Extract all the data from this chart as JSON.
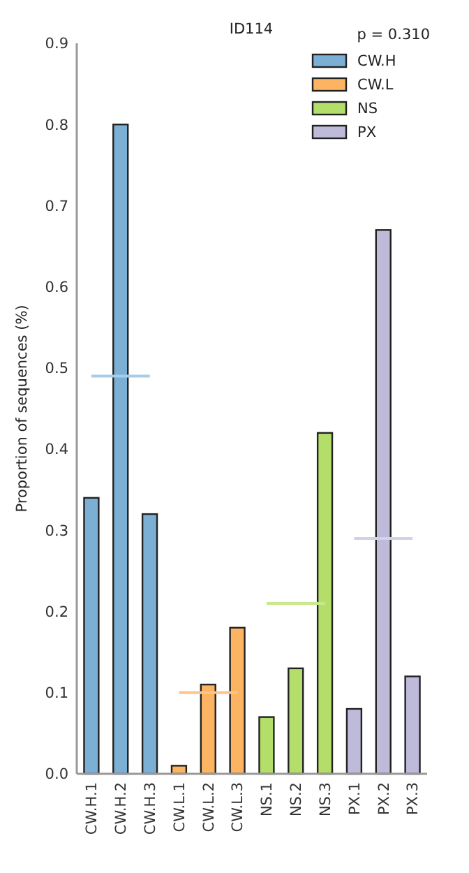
{
  "chart_data": {
    "type": "bar",
    "title": "ID114",
    "ylabel": "Proportion of sequences (%)",
    "annotations": [
      "p = 0.310"
    ],
    "categories": [
      "CW.H.1",
      "CW.H.2",
      "CW.H.3",
      "CW.L.1",
      "CW.L.2",
      "CW.L.3",
      "NS.1",
      "NS.2",
      "NS.3",
      "PX.1",
      "PX.2",
      "PX.3"
    ],
    "series": [
      {
        "name": "CW.H",
        "color": "#7bafd4",
        "values": [
          0.34,
          0.8,
          0.32,
          null,
          null,
          null,
          null,
          null,
          null,
          null,
          null,
          null
        ]
      },
      {
        "name": "CW.L",
        "color": "#fdb462",
        "values": [
          null,
          null,
          null,
          0.01,
          0.11,
          0.18,
          null,
          null,
          null,
          null,
          null,
          null
        ]
      },
      {
        "name": "NS",
        "color": "#b3de69",
        "values": [
          null,
          null,
          null,
          null,
          null,
          null,
          0.07,
          0.13,
          0.42,
          null,
          null,
          null
        ]
      },
      {
        "name": "PX",
        "color": "#bebada",
        "values": [
          null,
          null,
          null,
          null,
          null,
          null,
          null,
          null,
          null,
          0.08,
          0.67,
          0.12
        ]
      },
      {
        "type": "line",
        "color": "#a6cde8",
        "values": [
          0.49,
          0.49,
          0.49,
          null,
          null,
          null,
          null,
          null,
          null,
          null,
          null,
          null
        ]
      },
      {
        "type": "line",
        "color": "#fdc58a",
        "values": [
          null,
          null,
          null,
          0.1,
          0.1,
          0.1,
          null,
          null,
          null,
          null,
          null,
          null
        ]
      },
      {
        "type": "line",
        "color": "#c8e88a",
        "values": [
          null,
          null,
          null,
          null,
          null,
          null,
          0.21,
          0.21,
          0.21,
          null,
          null,
          null
        ]
      },
      {
        "type": "line",
        "color": "#d3d0ea",
        "values": [
          null,
          null,
          null,
          null,
          null,
          null,
          null,
          null,
          null,
          0.29,
          0.29,
          0.29
        ]
      }
    ],
    "ylim": [
      0,
      0.9
    ],
    "yticks": [
      {
        "value": 0,
        "label": "0.0"
      },
      0.1,
      0.2,
      0.3,
      0.4,
      0.5,
      0.6,
      0.7,
      0.8,
      0.9
    ],
    "legend": "top right",
    "grid": false
  }
}
